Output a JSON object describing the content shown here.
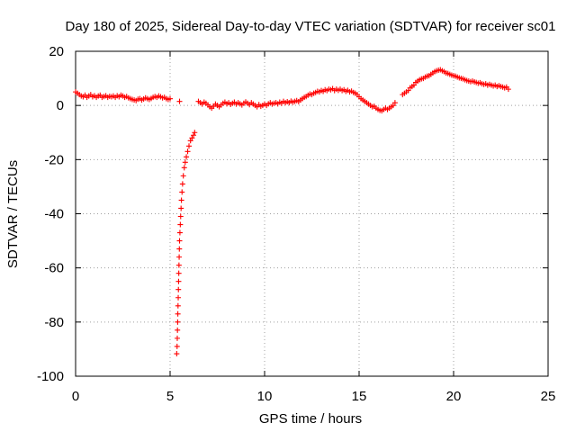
{
  "chart_data": {
    "type": "scatter",
    "title": "Day 180 of 2025, Sidereal Day-to-day VTEC variation (SDTVAR) for receiver sc01",
    "xlabel": "GPS time / hours",
    "ylabel": "SDTVAR / TECUs",
    "xlim": [
      0,
      25
    ],
    "ylim": [
      -100,
      20
    ],
    "xticks": [
      0,
      5,
      10,
      15,
      20,
      25
    ],
    "yticks": [
      -100,
      -80,
      -60,
      -40,
      -20,
      0,
      20
    ],
    "grid": true,
    "marker": "+",
    "color": "#ff0000",
    "series": [
      {
        "name": "SDTVAR",
        "points": [
          [
            0.0,
            5.0
          ],
          [
            0.1,
            4.5
          ],
          [
            0.2,
            4.0
          ],
          [
            0.3,
            3.5
          ],
          [
            0.4,
            3.2
          ],
          [
            0.5,
            3.8
          ],
          [
            0.6,
            3.0
          ],
          [
            0.7,
            3.5
          ],
          [
            0.8,
            4.0
          ],
          [
            0.9,
            3.2
          ],
          [
            1.0,
            3.6
          ],
          [
            1.1,
            3.0
          ],
          [
            1.2,
            3.5
          ],
          [
            1.3,
            3.8
          ],
          [
            1.4,
            3.0
          ],
          [
            1.5,
            3.3
          ],
          [
            1.6,
            3.6
          ],
          [
            1.7,
            3.0
          ],
          [
            1.8,
            3.4
          ],
          [
            1.9,
            3.2
          ],
          [
            2.0,
            3.5
          ],
          [
            2.1,
            3.0
          ],
          [
            2.2,
            3.6
          ],
          [
            2.3,
            3.2
          ],
          [
            2.4,
            3.8
          ],
          [
            2.5,
            3.5
          ],
          [
            2.6,
            3.0
          ],
          [
            2.7,
            3.3
          ],
          [
            2.8,
            2.8
          ],
          [
            2.9,
            2.5
          ],
          [
            3.0,
            2.2
          ],
          [
            3.1,
            2.0
          ],
          [
            3.2,
            1.8
          ],
          [
            3.3,
            2.3
          ],
          [
            3.4,
            2.5
          ],
          [
            3.5,
            2.0
          ],
          [
            3.6,
            2.4
          ],
          [
            3.7,
            2.8
          ],
          [
            3.8,
            2.5
          ],
          [
            3.9,
            2.2
          ],
          [
            4.0,
            2.6
          ],
          [
            4.1,
            3.0
          ],
          [
            4.2,
            3.3
          ],
          [
            4.3,
            3.0
          ],
          [
            4.4,
            3.5
          ],
          [
            4.5,
            3.2
          ],
          [
            4.6,
            2.8
          ],
          [
            4.7,
            3.0
          ],
          [
            4.8,
            2.5
          ],
          [
            4.9,
            2.2
          ],
          [
            5.0,
            2.5
          ],
          [
            5.5,
            1.5
          ],
          [
            5.35,
            -91.7
          ],
          [
            5.37,
            -89
          ],
          [
            5.38,
            -86
          ],
          [
            5.39,
            -83
          ],
          [
            5.4,
            -80
          ],
          [
            5.41,
            -77
          ],
          [
            5.42,
            -74
          ],
          [
            5.43,
            -71
          ],
          [
            5.44,
            -68
          ],
          [
            5.45,
            -65
          ],
          [
            5.46,
            -62
          ],
          [
            5.47,
            -59
          ],
          [
            5.48,
            -56
          ],
          [
            5.49,
            -53
          ],
          [
            5.5,
            -50
          ],
          [
            5.52,
            -47
          ],
          [
            5.54,
            -44
          ],
          [
            5.56,
            -41
          ],
          [
            5.58,
            -38
          ],
          [
            5.6,
            -35
          ],
          [
            5.63,
            -32
          ],
          [
            5.66,
            -29
          ],
          [
            5.7,
            -26
          ],
          [
            5.75,
            -23
          ],
          [
            5.8,
            -21
          ],
          [
            5.86,
            -19
          ],
          [
            5.93,
            -17
          ],
          [
            6.0,
            -15
          ],
          [
            6.08,
            -13
          ],
          [
            6.16,
            -12
          ],
          [
            6.24,
            -11
          ],
          [
            6.3,
            -10
          ],
          [
            6.5,
            1.5
          ],
          [
            6.6,
            1.0
          ],
          [
            6.7,
            0.5
          ],
          [
            6.8,
            1.2
          ],
          [
            6.9,
            0.8
          ],
          [
            7.0,
            0.2
          ],
          [
            7.1,
            -0.5
          ],
          [
            7.2,
            -1.0
          ],
          [
            7.3,
            -0.3
          ],
          [
            7.4,
            0.5
          ],
          [
            7.5,
            0.0
          ],
          [
            7.6,
            -0.5
          ],
          [
            7.7,
            0.2
          ],
          [
            7.8,
            0.8
          ],
          [
            7.9,
            1.2
          ],
          [
            8.0,
            0.6
          ],
          [
            8.1,
            1.0
          ],
          [
            8.2,
            0.4
          ],
          [
            8.3,
            0.8
          ],
          [
            8.4,
            1.2
          ],
          [
            8.5,
            0.5
          ],
          [
            8.6,
            1.0
          ],
          [
            8.7,
            0.6
          ],
          [
            8.8,
            0.2
          ],
          [
            8.9,
            0.8
          ],
          [
            9.0,
            1.3
          ],
          [
            9.1,
            0.8
          ],
          [
            9.2,
            0.3
          ],
          [
            9.3,
            1.0
          ],
          [
            9.4,
            0.5
          ],
          [
            9.5,
            0.0
          ],
          [
            9.6,
            -0.5
          ],
          [
            9.7,
            0.3
          ],
          [
            9.8,
            -0.3
          ],
          [
            9.9,
            0.0
          ],
          [
            10.0,
            0.5
          ],
          [
            10.1,
            0.0
          ],
          [
            10.2,
            0.6
          ],
          [
            10.3,
            1.0
          ],
          [
            10.4,
            0.5
          ],
          [
            10.5,
            0.8
          ],
          [
            10.6,
            1.0
          ],
          [
            10.7,
            0.6
          ],
          [
            10.8,
            1.2
          ],
          [
            10.9,
            0.8
          ],
          [
            11.0,
            1.5
          ],
          [
            11.1,
            1.0
          ],
          [
            11.2,
            1.4
          ],
          [
            11.3,
            1.0
          ],
          [
            11.4,
            1.6
          ],
          [
            11.5,
            1.2
          ],
          [
            11.6,
            1.5
          ],
          [
            11.7,
            1.8
          ],
          [
            11.8,
            1.4
          ],
          [
            11.9,
            2.0
          ],
          [
            12.0,
            2.5
          ],
          [
            12.1,
            3.0
          ],
          [
            12.2,
            3.3
          ],
          [
            12.3,
            3.8
          ],
          [
            12.4,
            4.2
          ],
          [
            12.5,
            4.0
          ],
          [
            12.6,
            4.5
          ],
          [
            12.7,
            4.8
          ],
          [
            12.8,
            5.2
          ],
          [
            12.9,
            5.0
          ],
          [
            13.0,
            5.5
          ],
          [
            13.1,
            5.2
          ],
          [
            13.2,
            5.8
          ],
          [
            13.3,
            5.5
          ],
          [
            13.4,
            6.0
          ],
          [
            13.5,
            5.8
          ],
          [
            13.6,
            6.2
          ],
          [
            13.7,
            5.5
          ],
          [
            13.8,
            6.0
          ],
          [
            13.9,
            5.6
          ],
          [
            14.0,
            6.0
          ],
          [
            14.1,
            5.5
          ],
          [
            14.2,
            5.8
          ],
          [
            14.3,
            5.2
          ],
          [
            14.4,
            5.6
          ],
          [
            14.5,
            5.0
          ],
          [
            14.6,
            5.3
          ],
          [
            14.7,
            4.8
          ],
          [
            14.8,
            4.5
          ],
          [
            14.9,
            4.0
          ],
          [
            15.0,
            3.2
          ],
          [
            15.1,
            2.5
          ],
          [
            15.2,
            2.0
          ],
          [
            15.3,
            1.5
          ],
          [
            15.4,
            1.0
          ],
          [
            15.5,
            0.5
          ],
          [
            15.6,
            0.0
          ],
          [
            15.7,
            -0.5
          ],
          [
            15.8,
            -0.3
          ],
          [
            15.9,
            -1.0
          ],
          [
            16.0,
            -1.5
          ],
          [
            16.1,
            -1.8
          ],
          [
            16.2,
            -2.0
          ],
          [
            16.3,
            -1.5
          ],
          [
            16.4,
            -1.0
          ],
          [
            16.5,
            -1.5
          ],
          [
            16.6,
            -1.0
          ],
          [
            16.7,
            -0.5
          ],
          [
            16.8,
            0.0
          ],
          [
            16.9,
            1.0
          ],
          [
            17.3,
            4.0
          ],
          [
            17.4,
            4.5
          ],
          [
            17.5,
            5.0
          ],
          [
            17.6,
            5.5
          ],
          [
            17.7,
            6.5
          ],
          [
            17.8,
            7.0
          ],
          [
            17.9,
            7.5
          ],
          [
            18.0,
            8.5
          ],
          [
            18.1,
            9.0
          ],
          [
            18.2,
            9.5
          ],
          [
            18.3,
            9.8
          ],
          [
            18.4,
            10.0
          ],
          [
            18.5,
            10.5
          ],
          [
            18.6,
            10.8
          ],
          [
            18.7,
            11.0
          ],
          [
            18.8,
            11.5
          ],
          [
            18.9,
            12.0
          ],
          [
            19.0,
            12.5
          ],
          [
            19.1,
            12.8
          ],
          [
            19.2,
            13.0
          ],
          [
            19.3,
            13.2
          ],
          [
            19.4,
            12.8
          ],
          [
            19.5,
            12.5
          ],
          [
            19.6,
            12.0
          ],
          [
            19.7,
            11.8
          ],
          [
            19.8,
            11.5
          ],
          [
            19.9,
            11.2
          ],
          [
            20.0,
            11.0
          ],
          [
            20.1,
            10.8
          ],
          [
            20.2,
            10.5
          ],
          [
            20.3,
            10.2
          ],
          [
            20.4,
            10.0
          ],
          [
            20.5,
            9.8
          ],
          [
            20.6,
            9.5
          ],
          [
            20.7,
            9.2
          ],
          [
            20.8,
            9.0
          ],
          [
            20.9,
            8.8
          ],
          [
            21.0,
            9.0
          ],
          [
            21.1,
            8.7
          ],
          [
            21.2,
            8.5
          ],
          [
            21.3,
            8.2
          ],
          [
            21.4,
            8.4
          ],
          [
            21.5,
            8.0
          ],
          [
            21.6,
            7.8
          ],
          [
            21.7,
            8.0
          ],
          [
            21.8,
            7.5
          ],
          [
            21.9,
            7.8
          ],
          [
            22.0,
            7.5
          ],
          [
            22.1,
            7.2
          ],
          [
            22.2,
            7.5
          ],
          [
            22.3,
            7.0
          ],
          [
            22.4,
            7.3
          ],
          [
            22.5,
            7.0
          ],
          [
            22.6,
            6.8
          ],
          [
            22.7,
            6.5
          ],
          [
            22.8,
            6.8
          ],
          [
            22.9,
            6.0
          ]
        ]
      }
    ]
  }
}
